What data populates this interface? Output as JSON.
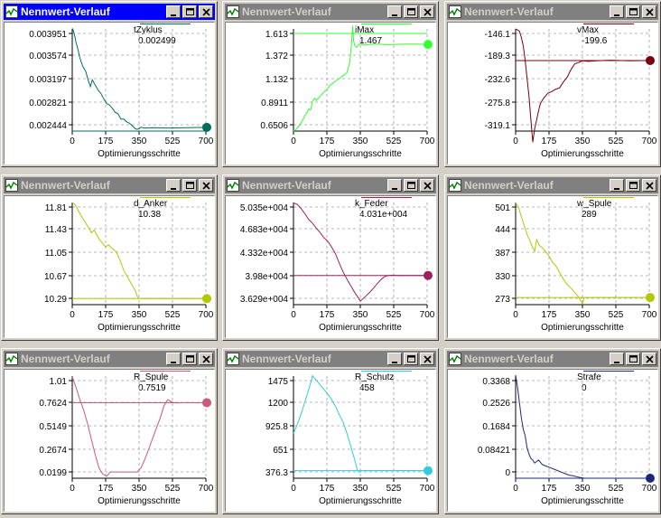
{
  "xaxis": {
    "label": "Optimierungsschritte",
    "ticks": [
      "0",
      "175",
      "350",
      "525",
      "700"
    ]
  },
  "windows": [
    {
      "title": "Nennwert-Verlauf",
      "active": true,
      "param": "tZyklus",
      "value": "0.002499",
      "color": "#006e5a",
      "yticks": [
        "0.003951",
        "0.003574",
        "0.003197",
        "0.002821",
        "0.002444"
      ],
      "chart_data": {
        "type": "line",
        "ylim": [
          0.002444,
          0.003951
        ],
        "x": [
          0,
          5,
          10,
          15,
          20,
          25,
          30,
          40,
          55,
          70,
          85,
          95,
          105,
          115,
          125,
          135,
          150,
          165,
          180,
          195,
          210,
          225,
          240,
          255,
          270,
          285,
          300,
          315,
          330,
          340,
          350,
          360,
          380,
          420,
          500,
          600,
          700
        ],
        "y": [
          0.00396,
          0.00393,
          0.00388,
          0.00382,
          0.00375,
          0.0037,
          0.00365,
          0.00352,
          0.0034,
          0.00333,
          0.00318,
          0.0031,
          0.0032,
          0.00315,
          0.0031,
          0.00305,
          0.003,
          0.00292,
          0.00285,
          0.00283,
          0.00278,
          0.00272,
          0.0027,
          0.00262,
          0.00262,
          0.00258,
          0.00256,
          0.00252,
          0.00248,
          0.00247,
          0.00248,
          0.0025,
          0.00249,
          0.002495,
          0.00249,
          0.002495,
          0.002499
        ],
        "ref": 0.002444
      }
    },
    {
      "title": "Nennwert-Verlauf",
      "active": false,
      "param": "iMax",
      "value": "1.467",
      "color": "#33ff33",
      "yticks": [
        "1.613",
        "1.372",
        "1.132",
        "0.8911",
        "0.6506"
      ],
      "chart_data": {
        "type": "line",
        "ylim": [
          0.6506,
          1.613
        ],
        "x": [
          0,
          10,
          20,
          30,
          40,
          50,
          60,
          70,
          80,
          90,
          100,
          110,
          120,
          130,
          140,
          150,
          160,
          175,
          190,
          205,
          220,
          235,
          250,
          265,
          280,
          295,
          305,
          310,
          315,
          320,
          330,
          345,
          370,
          420,
          500,
          600,
          700
        ],
        "y": [
          0.65,
          0.66,
          0.68,
          0.7,
          0.73,
          0.76,
          0.8,
          0.82,
          0.86,
          0.85,
          0.93,
          0.96,
          0.94,
          0.96,
          0.98,
          1.0,
          1.02,
          1.04,
          1.08,
          1.1,
          1.12,
          1.14,
          1.16,
          1.18,
          1.2,
          1.3,
          1.5,
          1.64,
          1.5,
          1.46,
          1.44,
          1.47,
          1.46,
          1.47,
          1.465,
          1.47,
          1.467
        ],
        "ref": 1.57
      }
    },
    {
      "title": "Nennwert-Verlauf",
      "active": false,
      "param": "vMax",
      "value": "-199.6",
      "color": "#7a0010",
      "yticks": [
        "-146.1",
        "-189.3",
        "-232.6",
        "-275.8",
        "-319.1"
      ],
      "chart_data": {
        "type": "line",
        "ylim": [
          -319.1,
          -146.1
        ],
        "x": [
          0,
          10,
          20,
          30,
          40,
          50,
          60,
          70,
          80,
          90,
          100,
          110,
          120,
          130,
          150,
          170,
          190,
          210,
          230,
          250,
          270,
          290,
          310,
          330,
          350,
          380,
          420,
          500,
          600,
          700
        ],
        "y": [
          -146,
          -148,
          -150,
          -160,
          -175,
          -200,
          -230,
          -260,
          -300,
          -338,
          -315,
          -300,
          -285,
          -272,
          -262,
          -255,
          -252,
          -248,
          -246,
          -236,
          -228,
          -215,
          -205,
          -203,
          -200,
          -201,
          -200,
          -199,
          -200,
          -199.6
        ],
        "ref": -199.6
      }
    },
    {
      "title": "Nennwert-Verlauf",
      "active": false,
      "param": "d_Anker",
      "value": "10.38",
      "color": "#b4c800",
      "yticks": [
        "11.81",
        "11.43",
        "11.05",
        "10.67",
        "10.29"
      ],
      "chart_data": {
        "type": "line",
        "ylim": [
          10.29,
          11.81
        ],
        "x": [
          0,
          15,
          30,
          45,
          60,
          75,
          90,
          100,
          115,
          130,
          145,
          160,
          175,
          190,
          210,
          230,
          250,
          270,
          290,
          310,
          330,
          345,
          360,
          400,
          500,
          600,
          700
        ],
        "y": [
          11.81,
          11.78,
          11.7,
          11.62,
          11.55,
          11.48,
          11.42,
          11.36,
          11.4,
          11.32,
          11.25,
          11.2,
          11.15,
          11.18,
          11.12,
          11.08,
          10.95,
          10.8,
          10.7,
          10.6,
          10.5,
          10.38,
          10.38,
          10.38,
          10.38,
          10.38,
          10.38
        ],
        "ref": 10.38
      }
    },
    {
      "title": "Nennwert-Verlauf",
      "active": false,
      "param": "k_Feder",
      "value": "4.031e+004",
      "color": "#9b2060",
      "yticks": [
        "5.035e+004",
        "4.683e+004",
        "4.332e+004",
        "3.98e+004",
        "3.629e+004"
      ],
      "chart_data": {
        "type": "line",
        "ylim": [
          36290,
          50350
        ],
        "x": [
          0,
          20,
          40,
          60,
          80,
          100,
          120,
          140,
          160,
          180,
          200,
          220,
          240,
          260,
          280,
          300,
          320,
          340,
          350,
          360,
          380,
          400,
          420,
          440,
          460,
          480,
          500,
          520,
          540,
          560,
          600,
          650,
          700
        ],
        "y": [
          50300,
          50100,
          49500,
          48800,
          48000,
          47500,
          46800,
          46200,
          45500,
          45000,
          44200,
          43300,
          42000,
          40800,
          39800,
          38900,
          38000,
          37200,
          36800,
          37000,
          37500,
          38000,
          38600,
          39200,
          39800,
          40200,
          40300,
          40350,
          40300,
          40310,
          40300,
          40310,
          40310
        ],
        "ref": 40310
      }
    },
    {
      "title": "Nennwert-Verlauf",
      "active": false,
      "param": "w_Spule",
      "value": "289",
      "color": "#b4c800",
      "yticks": [
        "501",
        "444",
        "387",
        "330",
        "273"
      ],
      "chart_data": {
        "type": "line",
        "ylim": [
          273,
          501
        ],
        "x": [
          0,
          15,
          30,
          45,
          60,
          75,
          90,
          100,
          110,
          125,
          140,
          155,
          170,
          190,
          210,
          230,
          250,
          270,
          290,
          310,
          330,
          350,
          360,
          400,
          500,
          600,
          700
        ],
        "y": [
          500,
          490,
          470,
          450,
          430,
          415,
          400,
          392,
          418,
          405,
          400,
          392,
          385,
          370,
          360,
          345,
          330,
          318,
          310,
          300,
          290,
          275,
          289,
          289,
          289,
          289,
          289
        ],
        "ref": 289
      }
    },
    {
      "title": "Nennwert-Verlauf",
      "active": false,
      "param": "R_Spule",
      "value": "0.7519",
      "color": "#c85a7a",
      "yticks": [
        "1.01",
        "0.7624",
        "0.5149",
        "0.2674",
        "0.0199"
      ],
      "chart_data": {
        "type": "line",
        "ylim": [
          0.0199,
          1.01
        ],
        "x": [
          0,
          20,
          40,
          60,
          80,
          100,
          120,
          140,
          160,
          180,
          200,
          240,
          280,
          320,
          340,
          360,
          380,
          400,
          420,
          440,
          460,
          480,
          500,
          520,
          540,
          600,
          650,
          700
        ],
        "y": [
          1.0,
          0.9,
          0.78,
          0.68,
          0.55,
          0.4,
          0.25,
          0.12,
          0.06,
          0.04,
          0.08,
          0.08,
          0.08,
          0.08,
          0.08,
          0.12,
          0.2,
          0.3,
          0.4,
          0.5,
          0.6,
          0.72,
          0.78,
          0.76,
          0.75,
          0.752,
          0.751,
          0.7519
        ],
        "ref": 0.7519
      }
    },
    {
      "title": "Nennwert-Verlauf",
      "active": false,
      "param": "R_Schutz",
      "value": "458",
      "color": "#33ccdd",
      "yticks": [
        "1475",
        "1200",
        "925.8",
        "651",
        "376.3"
      ],
      "chart_data": {
        "type": "line",
        "ylim": [
          376.3,
          1475
        ],
        "x": [
          0,
          15,
          30,
          45,
          60,
          75,
          90,
          100,
          110,
          125,
          140,
          160,
          180,
          200,
          220,
          240,
          260,
          280,
          300,
          320,
          335,
          345,
          360,
          400,
          500,
          600,
          700
        ],
        "y": [
          860,
          930,
          1010,
          1100,
          1200,
          1300,
          1400,
          1480,
          1450,
          1420,
          1380,
          1330,
          1280,
          1220,
          1150,
          1060,
          980,
          860,
          720,
          580,
          460,
          440,
          458,
          458,
          458,
          458,
          458
        ],
        "ref": 458
      }
    },
    {
      "title": "Nennwert-Verlauf",
      "active": false,
      "param": "Strafe",
      "value": "0",
      "color": "#1a2a7a",
      "yticks": [
        "0.3368",
        "0.2526",
        "0.1684",
        "0.08421",
        "0"
      ],
      "chart_data": {
        "type": "line",
        "ylim": [
          0,
          0.3368
        ],
        "x": [
          0,
          10,
          20,
          30,
          40,
          50,
          60,
          70,
          80,
          90,
          100,
          120,
          140,
          160,
          180,
          200,
          220,
          240,
          260,
          280,
          300,
          320,
          340,
          360,
          400,
          500,
          600,
          700
        ],
        "y": [
          0.34,
          0.3,
          0.25,
          0.2,
          0.16,
          0.14,
          0.1,
          0.08,
          0.065,
          0.06,
          0.05,
          0.06,
          0.045,
          0.04,
          0.035,
          0.03,
          0.025,
          0.02,
          0.015,
          0.01,
          0.008,
          0.005,
          0.002,
          0.0,
          0.0,
          0.0,
          0.0,
          0.0
        ],
        "ref": 0
      }
    }
  ]
}
